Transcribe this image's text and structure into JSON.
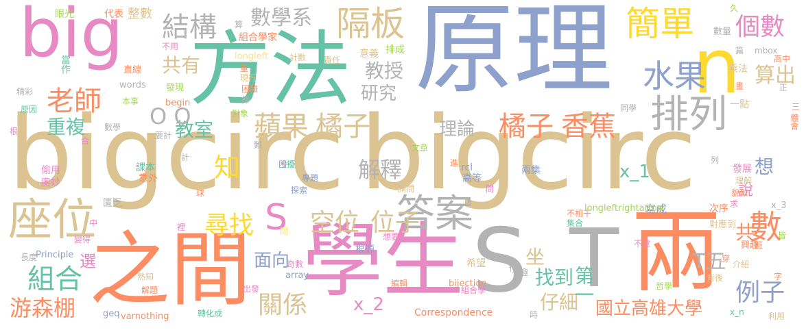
{
  "palette": {
    "tan": "#dcc392",
    "blue": "#8ea0cc",
    "green": "#66c2a5",
    "orange": "#fc8d62",
    "pink": "#e78ac3",
    "yellow": "#fed931",
    "gray": "#b3b3b3",
    "lime": "#a6d854",
    "lightyellow": "#ffe27a"
  },
  "words": [
    {
      "text": "bigcirc",
      "color": "tan"
    },
    {
      "text": "bigcirc",
      "color": "tan"
    },
    {
      "text": "原理",
      "color": "blue"
    },
    {
      "text": "方法",
      "color": "green"
    },
    {
      "text": "big",
      "color": "pink"
    },
    {
      "text": "學生",
      "color": "pink"
    },
    {
      "text": "之間",
      "color": "orange"
    },
    {
      "text": "兩",
      "color": "orange"
    },
    {
      "text": "S",
      "color": "gray"
    },
    {
      "text": "T",
      "color": "gray"
    },
    {
      "text": "n",
      "color": "yellow"
    },
    {
      "text": "座位",
      "color": "tan"
    },
    {
      "text": "答案",
      "color": "gray"
    },
    {
      "text": "蘋果",
      "color": "tan"
    },
    {
      "text": "橘子",
      "color": "tan"
    },
    {
      "text": "橘子",
      "color": "orange"
    },
    {
      "text": "香蕉",
      "color": "orange"
    },
    {
      "text": "排列",
      "color": "gray"
    },
    {
      "text": "簡單",
      "color": "yellow"
    },
    {
      "text": "隔板",
      "color": "tan"
    },
    {
      "text": "水果",
      "color": "blue"
    },
    {
      "text": "老師",
      "color": "orange"
    },
    {
      "text": "數學系",
      "color": "gray"
    },
    {
      "text": "結構",
      "color": "gray"
    },
    {
      "text": "個數",
      "color": "pink"
    },
    {
      "text": "空位",
      "color": "tan"
    },
    {
      "text": "位子",
      "color": "tan"
    },
    {
      "text": "尋找",
      "color": "yellow"
    },
    {
      "text": "S",
      "color": "pink"
    },
    {
      "text": "組合",
      "color": "green"
    },
    {
      "text": "關係",
      "color": "tan"
    },
    {
      "text": "例子",
      "color": "blue"
    },
    {
      "text": "國立高雄大學",
      "color": "orange"
    },
    {
      "text": "解釋",
      "color": "gray"
    },
    {
      "text": "數",
      "color": "orange"
    },
    {
      "text": "共",
      "color": "orange"
    },
    {
      "text": "游森棚",
      "color": "orange"
    },
    {
      "text": "x_2",
      "color": "pink"
    },
    {
      "text": "x_1",
      "color": "green"
    },
    {
      "text": "知",
      "color": "yellow"
    },
    {
      "text": "共有",
      "color": "tan"
    },
    {
      "text": "重複",
      "color": "green"
    },
    {
      "text": "教授",
      "color": "gray"
    },
    {
      "text": "研究",
      "color": "gray"
    },
    {
      "text": "教室",
      "color": "green"
    },
    {
      "text": "理論",
      "color": "gray"
    },
    {
      "text": "面向",
      "color": "blue"
    },
    {
      "text": "找到",
      "color": "green"
    },
    {
      "text": "仔細",
      "color": "tan"
    },
    {
      "text": "第一",
      "color": "green"
    },
    {
      "text": "T五",
      "color": "gray"
    },
    {
      "text": "算出",
      "color": "tan"
    },
    {
      "text": "想",
      "color": "blue"
    },
    {
      "text": "說",
      "color": "pink"
    },
    {
      "text": "選",
      "color": "pink"
    },
    {
      "text": "坐",
      "color": "tan"
    },
    {
      "text": "O O",
      "color": "gray"
    },
    {
      "text": "整數",
      "color": "tan"
    },
    {
      "text": "代表",
      "color": "orange"
    },
    {
      "text": "眼光",
      "color": "lime"
    },
    {
      "text": "組合學家",
      "color": "orange"
    },
    {
      "text": "longleft",
      "color": "lightyellow"
    },
    {
      "text": "計數",
      "color": "tan"
    },
    {
      "text": "責任",
      "color": "tan"
    },
    {
      "text": "意義",
      "color": "tan"
    },
    {
      "text": "排成",
      "color": "lime"
    },
    {
      "text": "數量",
      "color": "gray"
    },
    {
      "text": "mbox",
      "color": "gray"
    },
    {
      "text": "高中",
      "color": "orange"
    },
    {
      "text": "乘法",
      "color": "tan"
    },
    {
      "text": "現行",
      "color": "tan"
    },
    {
      "text": "困難",
      "color": "orange"
    },
    {
      "text": "發現",
      "color": "lime"
    },
    {
      "text": "begin",
      "color": "orange"
    },
    {
      "text": "words",
      "color": "gray"
    },
    {
      "text": "精彩",
      "color": "gray"
    },
    {
      "text": "原因",
      "color": "green"
    },
    {
      "text": "本事",
      "color": "lime"
    },
    {
      "text": "數學",
      "color": "gray"
    },
    {
      "text": "要計",
      "color": "gray"
    },
    {
      "text": "對象",
      "color": "lime"
    },
    {
      "text": "一點",
      "color": "tan"
    },
    {
      "text": "同學",
      "color": "gray"
    },
    {
      "text": "文章",
      "color": "lime"
    },
    {
      "text": "rcl",
      "color": "blue"
    },
    {
      "text": "兩集",
      "color": "blue"
    },
    {
      "text": "發展",
      "color": "pink"
    },
    {
      "text": "理解",
      "color": "tan"
    },
    {
      "text": "貌似",
      "color": "orange"
    },
    {
      "text": "課本",
      "color": "green"
    },
    {
      "text": "意外",
      "color": "orange"
    },
    {
      "text": "偷用",
      "color": "pink"
    },
    {
      "text": "奧妙",
      "color": "pink"
    },
    {
      "text": "困擾",
      "color": "green"
    },
    {
      "text": "專題",
      "color": "blue"
    },
    {
      "text": "探索",
      "color": "blue"
    },
    {
      "text": "請問",
      "color": "tan"
    },
    {
      "text": "高等",
      "color": "blue"
    },
    {
      "text": "匱乏",
      "color": "gray"
    },
    {
      "text": "寫成",
      "color": "blue"
    },
    {
      "text": "次序",
      "color": "orange"
    },
    {
      "text": "對應到",
      "color": "tan"
    },
    {
      "text": "不相干",
      "color": "orange"
    },
    {
      "text": "集合",
      "color": "green"
    },
    {
      "text": "興趣",
      "color": "orange"
    },
    {
      "text": "不虞",
      "color": "pink"
    },
    {
      "text": "介紹",
      "color": "tan"
    },
    {
      "text": "x_3",
      "color": "gray"
    },
    {
      "text": "變得",
      "color": "pink"
    },
    {
      "text": "長度",
      "color": "gray"
    },
    {
      "text": "Principle",
      "color": "blue"
    },
    {
      "text": "熟知",
      "color": "tan"
    },
    {
      "text": "解題",
      "color": "orange"
    },
    {
      "text": "geq",
      "color": "blue"
    },
    {
      "text": "varnothing",
      "color": "orange"
    },
    {
      "text": "轉化成",
      "color": "green"
    },
    {
      "text": "出發",
      "color": "pink"
    },
    {
      "text": "組合學",
      "color": "pink"
    },
    {
      "text": "編輯",
      "color": "orange"
    },
    {
      "text": "bijection",
      "color": "orange"
    },
    {
      "text": "Correspondence",
      "color": "orange"
    },
    {
      "text": "哲學",
      "color": "lime"
    },
    {
      "text": "x_n",
      "color": "green"
    },
    {
      "text": "利用",
      "color": "tan"
    },
    {
      "text": "背後",
      "color": "tan"
    },
    {
      "text": "想要",
      "color": "pink"
    },
    {
      "text": "根源",
      "color": "blue"
    },
    {
      "text": "奇數",
      "color": "pink"
    },
    {
      "text": "longleftrightarrow",
      "color": "lime"
    },
    {
      "text": "array",
      "color": "blue"
    },
    {
      "text": "希望",
      "color": "tan"
    },
    {
      "text": "有趣",
      "color": "gray"
    },
    {
      "text": "當作",
      "color": "green"
    },
    {
      "text": "直線",
      "color": "orange"
    },
    {
      "text": "不用",
      "color": "pink"
    },
    {
      "text": "算",
      "color": "gray"
    },
    {
      "text": "久",
      "color": "lime"
    },
    {
      "text": "篇",
      "color": "gray"
    },
    {
      "text": "量",
      "color": "orange"
    },
    {
      "text": "掃",
      "color": "gray"
    },
    {
      "text": "畫",
      "color": "orange"
    },
    {
      "text": "根",
      "color": "pink"
    },
    {
      "text": "合",
      "color": "pink"
    },
    {
      "text": "計",
      "color": "gray"
    },
    {
      "text": "難",
      "color": "gray"
    },
    {
      "text": "令",
      "color": "pink"
    },
    {
      "text": "進",
      "color": "orange"
    },
    {
      "text": "問",
      "color": "pink"
    },
    {
      "text": "列",
      "color": "gray"
    },
    {
      "text": "求",
      "color": "pink"
    },
    {
      "text": "球",
      "color": "orange"
    },
    {
      "text": "中",
      "color": "pink"
    },
    {
      "text": "裡",
      "color": "pink"
    },
    {
      "text": "間",
      "color": "lightyellow"
    },
    {
      "text": "作",
      "color": "gray"
    },
    {
      "text": "時",
      "color": "gray"
    },
    {
      "text": "穿",
      "color": "orange"
    },
    {
      "text": "班",
      "color": "orange"
    },
    {
      "text": "皆",
      "color": "lime"
    },
    {
      "text": "字",
      "color": "orange"
    },
    {
      "text": "三",
      "color": "orange"
    },
    {
      "text": "體會",
      "color": "orange"
    },
    {
      "text": "正",
      "color": "gray"
    }
  ]
}
